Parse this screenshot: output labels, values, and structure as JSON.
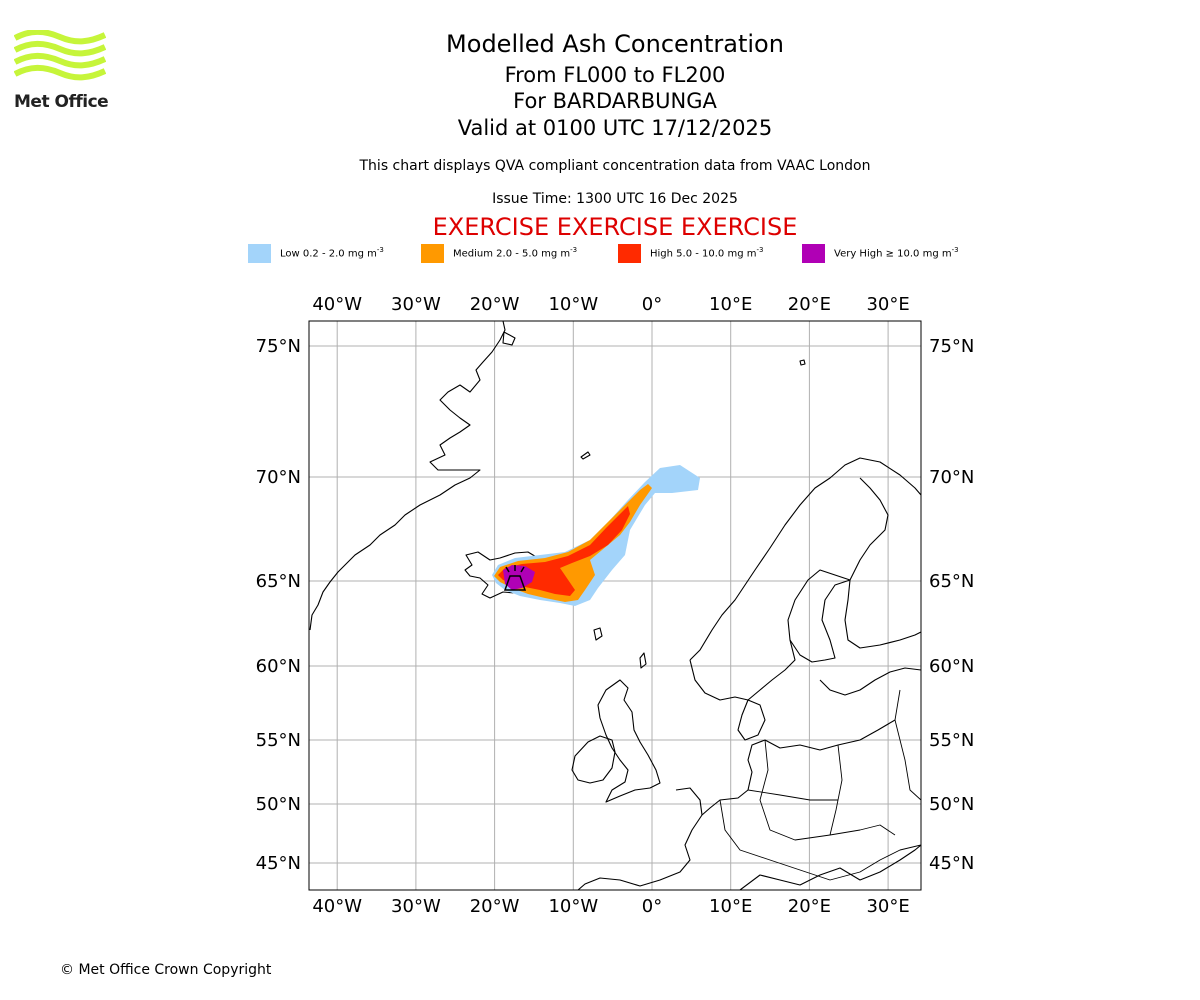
{
  "titles": {
    "main": "Modelled Ash Concentration",
    "levels": "From FL000 to FL200",
    "volcano": "For BARDARBUNGA",
    "valid": "Valid at 0100 UTC 17/12/2025"
  },
  "disclaimer": "This chart displays QVA compliant concentration data from VAAC London",
  "issue_time": "Issue Time: 1300 UTC 16 Dec 2025",
  "exercise_banner": "EXERCISE EXERCISE EXERCISE",
  "logo": {
    "name": "met-office-logo",
    "text": "Met Office",
    "color": "#c6f53a"
  },
  "legend": [
    {
      "label": "Low 0.2 - 2.0 mg m",
      "sup": "-3",
      "color": "#a3d4fa"
    },
    {
      "label": "Medium 2.0 - 5.0 mg m",
      "sup": "-3",
      "color": "#ff9900"
    },
    {
      "label": "High 5.0 - 10.0 mg m",
      "sup": "-3",
      "color": "#ff2a00"
    },
    {
      "label": "Very High ≥ 10.0 mg m",
      "sup": "-3",
      "color": "#b000b5"
    }
  ],
  "map": {
    "lon_labels": [
      "40°W",
      "30°W",
      "20°W",
      "10°W",
      "0°",
      "10°E",
      "20°E",
      "30°E"
    ],
    "lon_values": [
      -40,
      -30,
      -20,
      -10,
      0,
      10,
      20,
      30
    ],
    "lat_labels": [
      "75°N",
      "70°N",
      "65°N",
      "60°N",
      "55°N",
      "50°N",
      "45°N"
    ],
    "lat_values": [
      75,
      70,
      65,
      60,
      55,
      50,
      45
    ],
    "gridlines": true,
    "volcano_marker": "volcano-icon"
  },
  "copyright": "© Met Office Crown Copyright"
}
